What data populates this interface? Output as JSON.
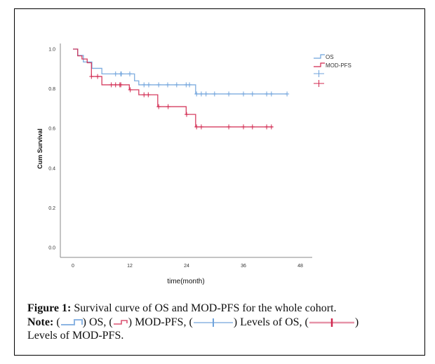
{
  "chart_data": {
    "type": "line",
    "subtype": "kaplan-meier",
    "title": "",
    "xlabel": "time(month)",
    "ylabel": "Cum Survival",
    "xlim": [
      0,
      48
    ],
    "ylim": [
      0,
      1.0
    ],
    "x_ticks": [
      0,
      12,
      24,
      36,
      48
    ],
    "y_ticks": [
      "0.0",
      "0.2",
      "0.4",
      "0.6",
      "0.8",
      "1.0"
    ],
    "grid": false,
    "legend_position": "top-right",
    "legend": [
      "OS",
      "MOD-PFS",
      "",
      ""
    ],
    "series": [
      {
        "name": "OS",
        "color": "#6fa3dc",
        "steps": [
          [
            0,
            1.0
          ],
          [
            1.0,
            0.968
          ],
          [
            2.2,
            0.935
          ],
          [
            4.0,
            0.903
          ],
          [
            6.1,
            0.875
          ],
          [
            13.0,
            0.84
          ],
          [
            13.9,
            0.82
          ],
          [
            25.9,
            0.774
          ]
        ],
        "end": 45.2,
        "censored": [
          9.0,
          10.1,
          10.2,
          12.0,
          15.0,
          16.0,
          18.1,
          20.0,
          21.9,
          23.9,
          24.6,
          26.1,
          27.1,
          28.1,
          29.9,
          32.9,
          36.0,
          37.9,
          40.9,
          41.9,
          45.2
        ]
      },
      {
        "name": "MOD-PFS",
        "color": "#d1284f",
        "steps": [
          [
            0,
            1.0
          ],
          [
            1.0,
            0.966
          ],
          [
            1.9,
            0.95
          ],
          [
            3.0,
            0.931
          ],
          [
            3.9,
            0.862
          ],
          [
            6.1,
            0.82
          ],
          [
            11.9,
            0.795
          ],
          [
            13.9,
            0.77
          ],
          [
            17.9,
            0.71
          ],
          [
            23.9,
            0.671
          ],
          [
            25.9,
            0.608
          ]
        ],
        "end": 42.2,
        "censored": [
          3.9,
          5.2,
          8.1,
          9.0,
          9.9,
          10.1,
          12.1,
          15.0,
          15.9,
          18.1,
          20.1,
          24.0,
          26.1,
          27.1,
          32.9,
          36.0,
          37.9,
          40.9,
          41.9
        ]
      }
    ]
  },
  "caption": {
    "figure_label": "Figure 1:",
    "figure_text": " Survival curve of OS and MOD-PFS for the whole cohort.",
    "note_label": "Note:",
    "os_text": ") OS, (",
    "pfs_text": ") MOD-PFS, (",
    "os_levels_text": ") Levels of OS, (",
    "pfs_levels_text": ")",
    "last_line": "Levels of MOD-PFS.",
    "open_paren": " ("
  }
}
